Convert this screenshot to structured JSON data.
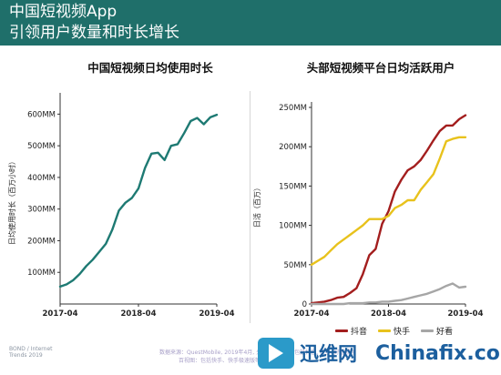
{
  "header": {
    "title_line1": "中国短视频App",
    "title_line2": "引领用户数量和时长增长"
  },
  "chart_data": [
    {
      "type": "line",
      "title": "中国短视频日均使用时长",
      "ylabel": "日均使用时长（百万小时）",
      "xlabel": "",
      "x_ticks": [
        "2017-04",
        "2018-04",
        "2019-04"
      ],
      "y_ticks": [
        "100MM",
        "200MM",
        "300MM",
        "400MM",
        "500MM",
        "600MM"
      ],
      "y_tick_values": [
        100,
        200,
        300,
        400,
        500,
        600
      ],
      "ylim": [
        0,
        650
      ],
      "xlim": [
        0,
        24
      ],
      "grid": false,
      "series": [
        {
          "color": "#1e7a73",
          "x": [
            0,
            1,
            2,
            3,
            4,
            5,
            6,
            7,
            8,
            9,
            10,
            11,
            12,
            13,
            14,
            15,
            16,
            17,
            18,
            19,
            20,
            21,
            22,
            23,
            24
          ],
          "values": [
            55,
            62,
            75,
            95,
            120,
            140,
            165,
            190,
            235,
            295,
            320,
            335,
            365,
            430,
            475,
            478,
            455,
            500,
            505,
            540,
            578,
            588,
            568,
            590,
            598
          ]
        }
      ]
    },
    {
      "type": "line",
      "title": "头部短视频平台日均活跃用户",
      "ylabel": "日活（百万）",
      "xlabel": "",
      "x_ticks": [
        "2017-04",
        "2018-04",
        "2019-04"
      ],
      "y_ticks": [
        "0",
        "50MM",
        "100MM",
        "150MM",
        "200MM",
        "250MM"
      ],
      "y_tick_values": [
        0,
        50,
        100,
        150,
        200,
        250
      ],
      "ylim": [
        0,
        250
      ],
      "xlim": [
        0,
        24
      ],
      "grid": false,
      "legend": "bottom",
      "series": [
        {
          "name": "抖音",
          "color": "#a31e1e",
          "x": [
            0,
            1,
            2,
            3,
            4,
            5,
            6,
            7,
            8,
            9,
            10,
            11,
            12,
            13,
            14,
            15,
            16,
            17,
            18,
            19,
            20,
            21,
            22,
            23,
            24
          ],
          "values": [
            1,
            2,
            3,
            5,
            8,
            9,
            14,
            20,
            38,
            62,
            70,
            102,
            118,
            143,
            158,
            170,
            175,
            183,
            195,
            208,
            220,
            227,
            227,
            235,
            240
          ]
        },
        {
          "name": "快手",
          "color": "#e8c21c",
          "x": [
            0,
            1,
            2,
            3,
            4,
            5,
            6,
            7,
            8,
            9,
            10,
            11,
            12,
            13,
            14,
            15,
            16,
            17,
            18,
            19,
            20,
            21,
            22,
            23,
            24
          ],
          "values": [
            50,
            55,
            60,
            68,
            76,
            82,
            88,
            94,
            100,
            108,
            108,
            108,
            112,
            122,
            126,
            132,
            132,
            145,
            155,
            165,
            185,
            207,
            210,
            212,
            212
          ]
        },
        {
          "name": "好看",
          "color": "#a6a6a6",
          "x": [
            0,
            1,
            2,
            3,
            4,
            5,
            6,
            7,
            8,
            9,
            10,
            11,
            12,
            13,
            14,
            15,
            16,
            17,
            18,
            19,
            20,
            21,
            22,
            23,
            24
          ],
          "values": [
            0,
            0,
            0,
            0,
            0,
            0,
            1,
            1,
            1,
            2,
            2,
            3,
            3,
            4,
            5,
            7,
            9,
            11,
            13,
            16,
            19,
            23,
            26,
            21,
            22
          ]
        }
      ]
    }
  ],
  "footer": {
    "brand_left": "BOND / Internet Trends 2019",
    "source_line1": "数据来源：QuestMobile, 2019年4月, 头部短视频平台包括抖音, 快手, 好看视频",
    "source_line2": "百视图：包括快手、快手极速版等"
  },
  "watermark": {
    "cn": "迅维网",
    "en": "Chinafix.com",
    "icon": "play-logo-icon"
  }
}
